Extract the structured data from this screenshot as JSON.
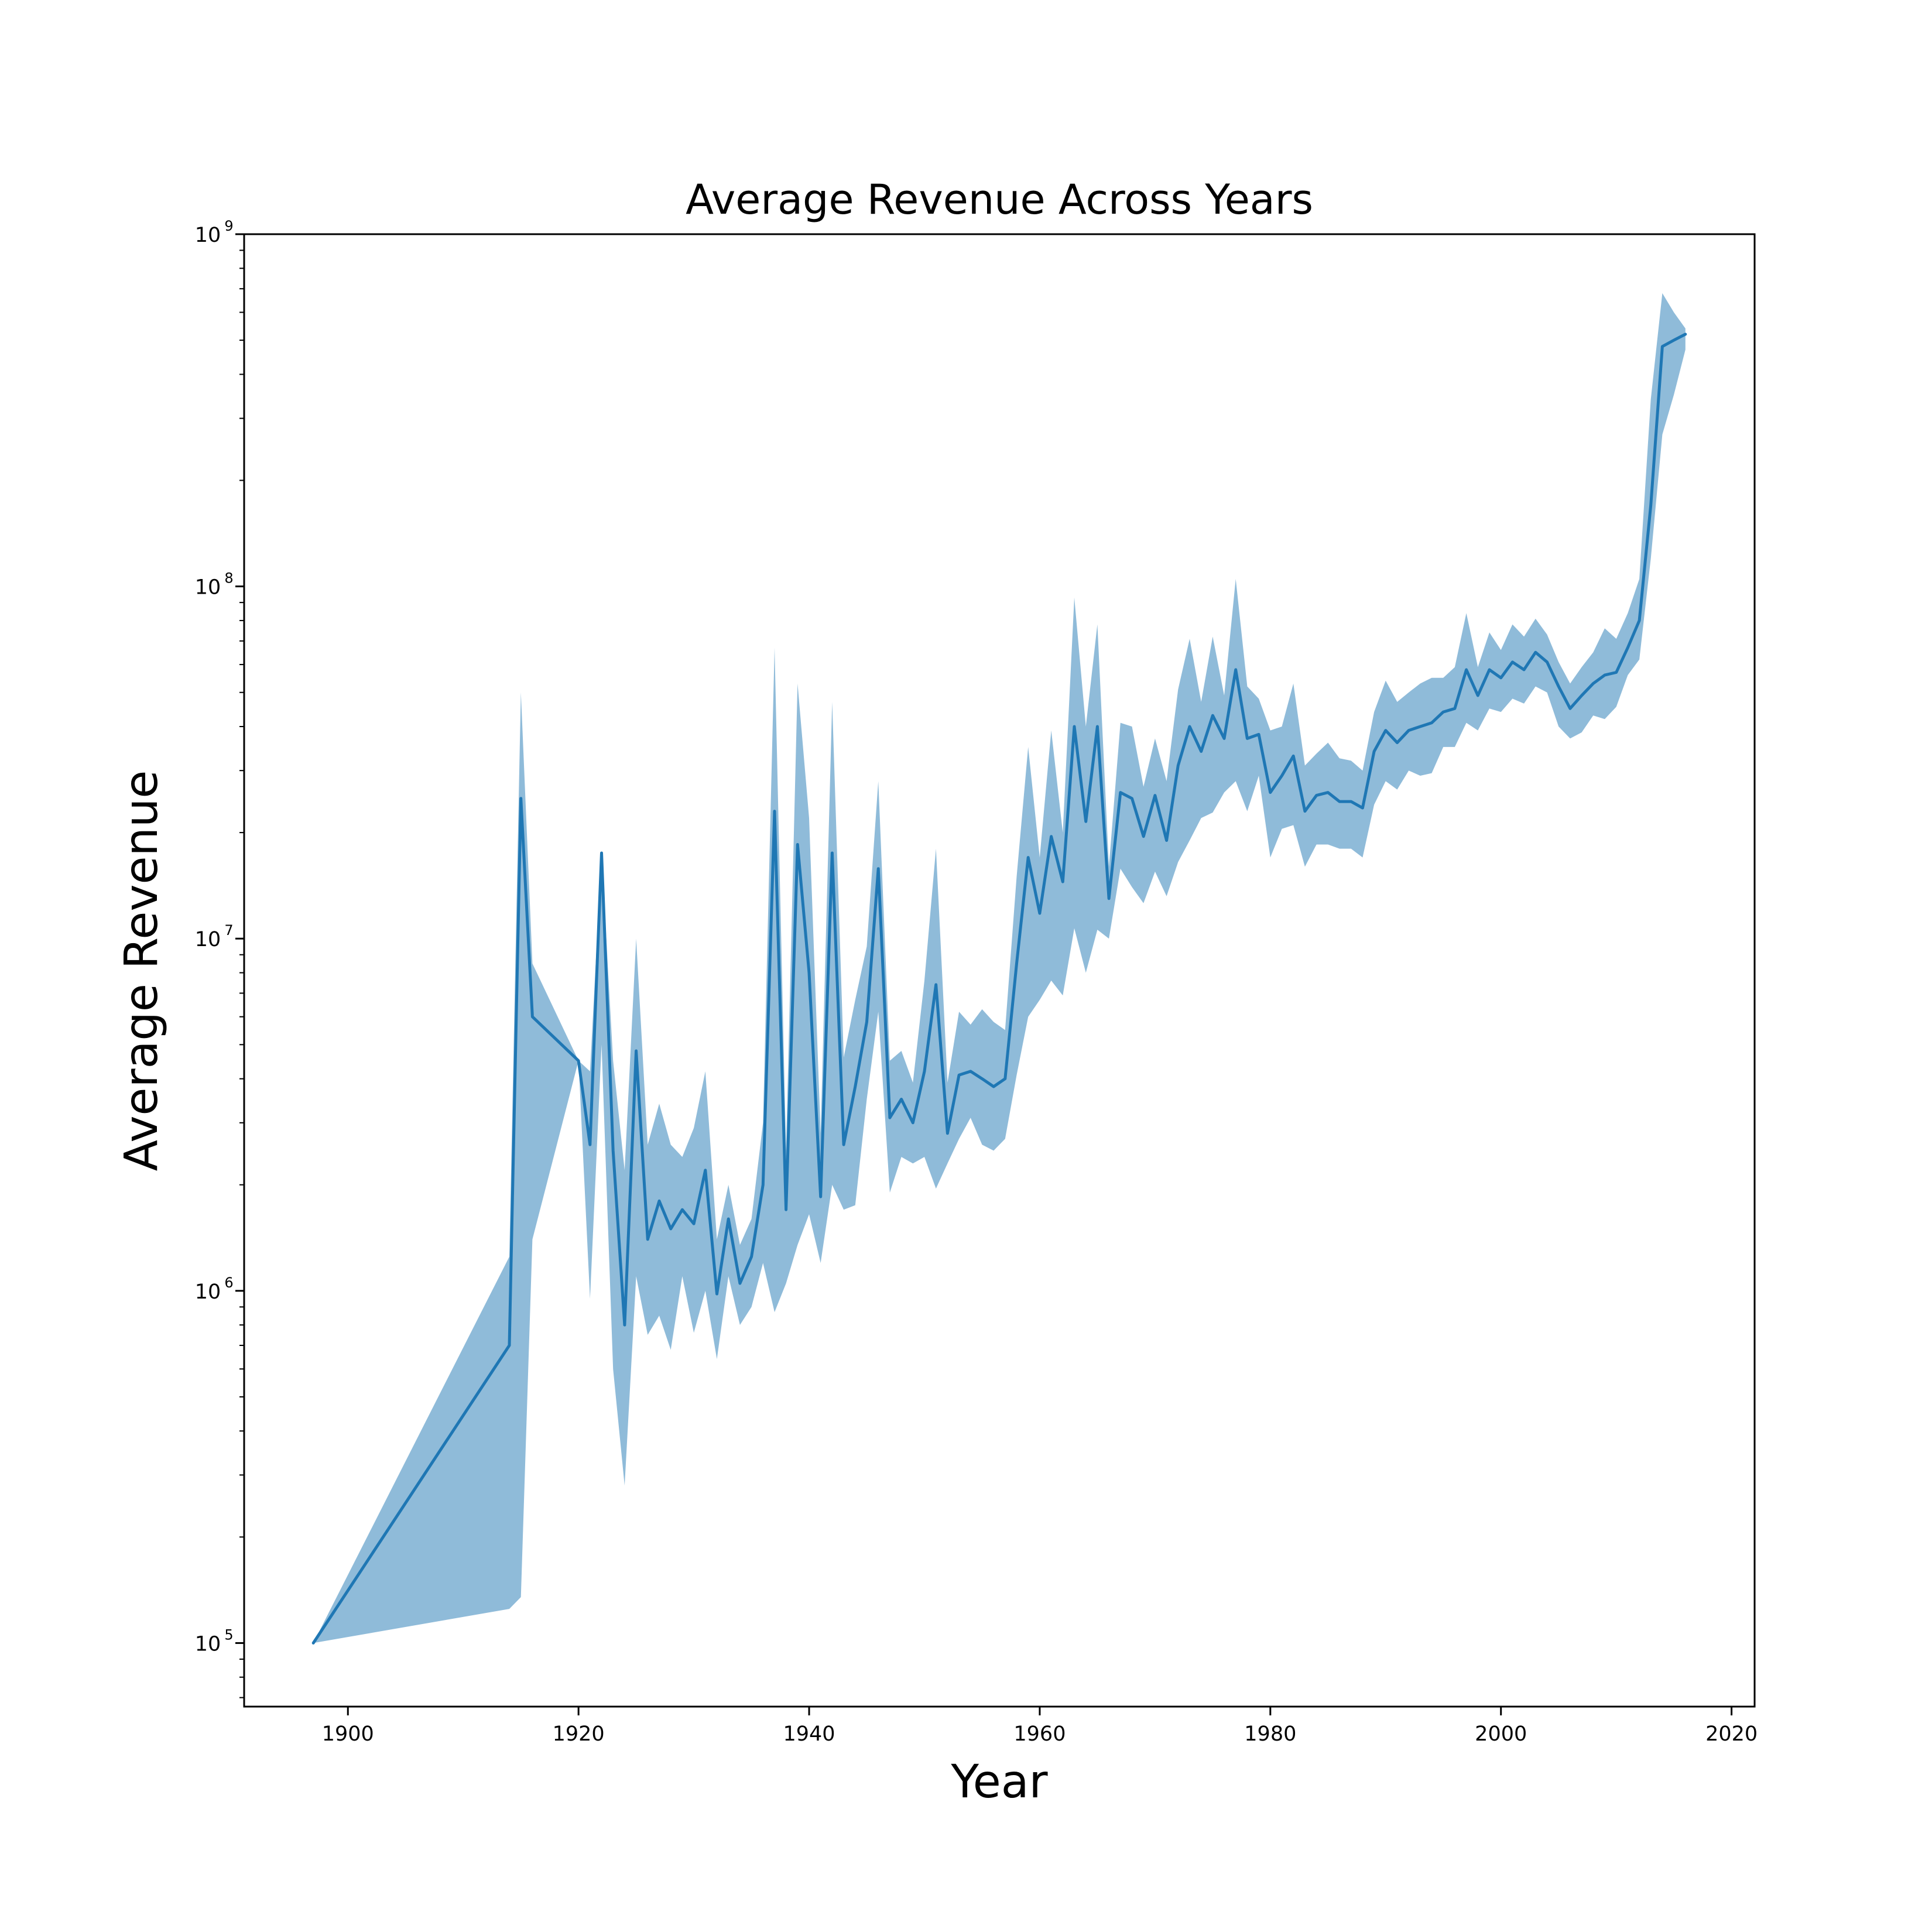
{
  "chart_data": {
    "type": "line",
    "title": "Average Revenue Across Years",
    "xlabel": "Year",
    "ylabel": "Average Revenue",
    "xlim": [
      1891,
      2022
    ],
    "ylim": [
      66000,
      1000000000
    ],
    "yscale": "log",
    "grid": false,
    "x_ticks": [
      {
        "value": 1900,
        "label": "1900"
      },
      {
        "value": 1920,
        "label": "1920"
      },
      {
        "value": 1940,
        "label": "1940"
      },
      {
        "value": 1960,
        "label": "1960"
      },
      {
        "value": 1980,
        "label": "1980"
      },
      {
        "value": 2000,
        "label": "2000"
      },
      {
        "value": 2020,
        "label": "2020"
      }
    ],
    "y_ticks": [
      {
        "value": 100000,
        "base": "10",
        "exp": "5"
      },
      {
        "value": 1000000,
        "base": "10",
        "exp": "6"
      },
      {
        "value": 10000000,
        "base": "10",
        "exp": "7"
      },
      {
        "value": 100000000,
        "base": "10",
        "exp": "8"
      },
      {
        "value": 1000000000,
        "base": "10",
        "exp": "9"
      }
    ],
    "colors": {
      "line": "#1f77b4",
      "band": "#1f77b4",
      "band_opacity": 0.5
    },
    "series": [
      {
        "x": [
          1897,
          1914,
          1915,
          1916,
          1920,
          1921,
          1922,
          1923,
          1924,
          1925,
          1926,
          1927,
          1928,
          1929,
          1930,
          1931,
          1932,
          1933,
          1934,
          1935,
          1936,
          1937,
          1938,
          1939,
          1940,
          1941,
          1942,
          1943,
          1944,
          1945,
          1946,
          1947,
          1948,
          1949,
          1950,
          1951,
          1952,
          1953,
          1954,
          1955,
          1956,
          1957,
          1958,
          1959,
          1960,
          1961,
          1962,
          1963,
          1964,
          1965,
          1966,
          1967,
          1968,
          1969,
          1970,
          1971,
          1972,
          1973,
          1974,
          1975,
          1976,
          1977,
          1978,
          1979,
          1980,
          1981,
          1982,
          1983,
          1984,
          1985,
          1986,
          1987,
          1988,
          1989,
          1990,
          1991,
          1992,
          1993,
          1994,
          1995,
          1996,
          1997,
          1998,
          1999,
          2000,
          2001,
          2002,
          2003,
          2004,
          2005,
          2006,
          2007,
          2008,
          2009,
          2010,
          2011,
          2012,
          2013,
          2014,
          2015,
          2016
        ],
        "y": [
          100000,
          700000,
          25000000,
          6000000,
          4500000,
          2600000,
          17500000,
          2500000,
          800000,
          4800000,
          1400000,
          1800000,
          1500000,
          1700000,
          1550000,
          2200000,
          980000,
          1600000,
          1050000,
          1250000,
          2000000,
          23000000,
          1700000,
          18500000,
          8000000,
          1850000,
          17500000,
          2600000,
          3800000,
          5800000,
          15800000,
          3100000,
          3500000,
          3000000,
          4200000,
          7400000,
          2800000,
          4100000,
          4200000,
          4000000,
          3800000,
          4000000,
          8500000,
          17000000,
          11800000,
          19500000,
          14500000,
          40000000,
          21500000,
          40000000,
          13000000,
          26000000,
          25000000,
          19500000,
          25500000,
          19000000,
          31000000,
          40000000,
          34000000,
          43000000,
          37000000,
          58000000,
          37000000,
          38000000,
          26000000,
          29000000,
          33000000,
          23000000,
          25500000,
          26000000,
          24500000,
          24500000,
          23500000,
          34000000,
          39000000,
          36000000,
          39000000,
          40000000,
          41000000,
          44000000,
          45000000,
          58000000,
          49000000,
          58000000,
          55000000,
          61000000,
          58000000,
          65000000,
          61000000,
          52000000,
          45000000,
          49000000,
          53000000,
          56000000,
          57000000,
          67000000,
          80000000,
          170000000,
          480000000,
          500000000,
          520000000
        ],
        "lower": [
          100000,
          125000,
          135000,
          1400000,
          4500000,
          950000,
          5000000,
          600000,
          280000,
          1100000,
          750000,
          850000,
          680000,
          1100000,
          760000,
          1000000,
          640000,
          1100000,
          800000,
          900000,
          1200000,
          870000,
          1050000,
          1350000,
          1650000,
          1200000,
          2000000,
          1700000,
          1750000,
          3500000,
          6200000,
          1900000,
          2400000,
          2300000,
          2400000,
          1950000,
          2300000,
          2700000,
          3100000,
          2600000,
          2500000,
          2700000,
          4100000,
          6000000,
          6700000,
          7600000,
          6900000,
          10700000,
          8000000,
          10600000,
          10000000,
          15800000,
          14000000,
          12600000,
          15500000,
          13200000,
          16500000,
          19000000,
          22000000,
          22800000,
          26000000,
          28000000,
          23000000,
          29000000,
          17000000,
          20500000,
          21000000,
          16000000,
          18500000,
          18500000,
          18000000,
          18000000,
          17000000,
          24000000,
          28000000,
          26500000,
          30000000,
          29000000,
          29500000,
          35000000,
          35000000,
          41000000,
          39000000,
          45000000,
          44000000,
          48000000,
          46500000,
          52000000,
          50000000,
          40000000,
          37000000,
          38500000,
          43000000,
          42000000,
          45500000,
          56000000,
          62000000,
          120000000,
          270000000,
          350000000,
          470000000
        ],
        "upper": [
          100000,
          1250000,
          50000000,
          8500000,
          4500000,
          4200000,
          17500000,
          4500000,
          2200000,
          10000000,
          2600000,
          3400000,
          2600000,
          2400000,
          2900000,
          4200000,
          1400000,
          2000000,
          1350000,
          1600000,
          3000000,
          67000000,
          2500000,
          53000000,
          22000000,
          2800000,
          47000000,
          4600000,
          6700000,
          9500000,
          28000000,
          4500000,
          4800000,
          3900000,
          7600000,
          18000000,
          3900000,
          6200000,
          5700000,
          6300000,
          5800000,
          5500000,
          15000000,
          35000000,
          17000000,
          39000000,
          20000000,
          93000000,
          40000000,
          78000000,
          16000000,
          41000000,
          40000000,
          27000000,
          37000000,
          28000000,
          51000000,
          71000000,
          47000000,
          72000000,
          49000000,
          105000000,
          52000000,
          48000000,
          39000000,
          40000000,
          53000000,
          31000000,
          33500000,
          36000000,
          32500000,
          32000000,
          30000000,
          44000000,
          54000000,
          47000000,
          50000000,
          53000000,
          55000000,
          55000000,
          59000000,
          84000000,
          59000000,
          74000000,
          66000000,
          78000000,
          72000000,
          81000000,
          73000000,
          61000000,
          53000000,
          59000000,
          65000000,
          76000000,
          71000000,
          84000000,
          105000000,
          340000000,
          680000000,
          600000000,
          540000000
        ]
      }
    ]
  }
}
